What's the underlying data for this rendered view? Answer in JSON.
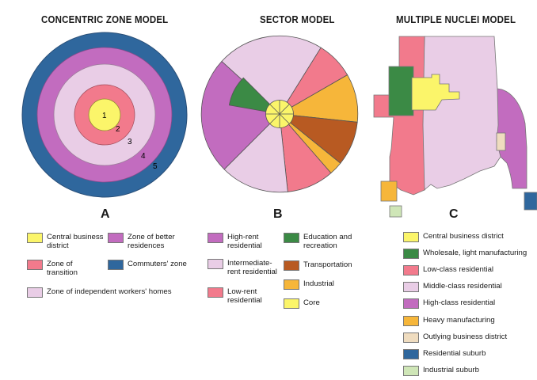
{
  "colors": {
    "cbd": "#fbf56a",
    "low": "#f27a8c",
    "middle": "#e9cde6",
    "high": "#c26cbf",
    "suburb": "#2f679d",
    "education": "#3b8a45",
    "wholesale": "#3b8a45",
    "transport": "#b85a22",
    "industrial": "#f6b63a",
    "heavy": "#f6b63a",
    "outlying": "#efdcbf",
    "industrial_suburb": "#cfe6b7"
  },
  "concentric": {
    "title": "CONCENTRIC ZONE MODEL",
    "letter": "A",
    "ring_numbers": [
      "1",
      "2",
      "3",
      "4",
      "5"
    ],
    "legend": [
      {
        "label": "Central business\ndistrict",
        "color": "#fbf56a"
      },
      {
        "label": "Zone of better\nresidences",
        "color": "#c26cbf"
      },
      {
        "label": "Zone of\ntransition",
        "color": "#f27a8c"
      },
      {
        "label": "Commuters' zone",
        "color": "#2f679d"
      },
      {
        "label": "Zone of independent workers' homes",
        "color": "#e9cde6"
      }
    ]
  },
  "sector": {
    "title": "SECTOR  MODEL",
    "letter": "B",
    "legend": [
      {
        "label": "High-rent\nresidential",
        "color": "#c26cbf"
      },
      {
        "label": "Education and\nrecreation",
        "color": "#3b8a45"
      },
      {
        "label": "Intermediate-\nrent residential",
        "color": "#e9cde6"
      },
      {
        "label": "Transportation",
        "color": "#b85a22"
      },
      {
        "label": "Low-rent\nresidential",
        "color": "#f27a8c"
      },
      {
        "label": "Industrial",
        "color": "#f6b63a"
      },
      {
        "label": "Core",
        "color": "#fbf56a"
      }
    ]
  },
  "nuclei": {
    "title": "MULTIPLE NUCLEI MODEL",
    "letter": "C",
    "legend": [
      {
        "label": "Central business district",
        "color": "#fbf56a"
      },
      {
        "label": "Wholesale, light manufacturing",
        "color": "#3b8a45"
      },
      {
        "label": "Low-class residential",
        "color": "#f27a8c"
      },
      {
        "label": "Middle-class residential",
        "color": "#e9cde6"
      },
      {
        "label": "High-class residential",
        "color": "#c26cbf"
      },
      {
        "label": "Heavy manufacturing",
        "color": "#f6b63a"
      },
      {
        "label": "Outlying business district",
        "color": "#efdcbf"
      },
      {
        "label": "Residential suburb",
        "color": "#2f679d"
      },
      {
        "label": "Industrial suburb",
        "color": "#cfe6b7"
      }
    ]
  }
}
